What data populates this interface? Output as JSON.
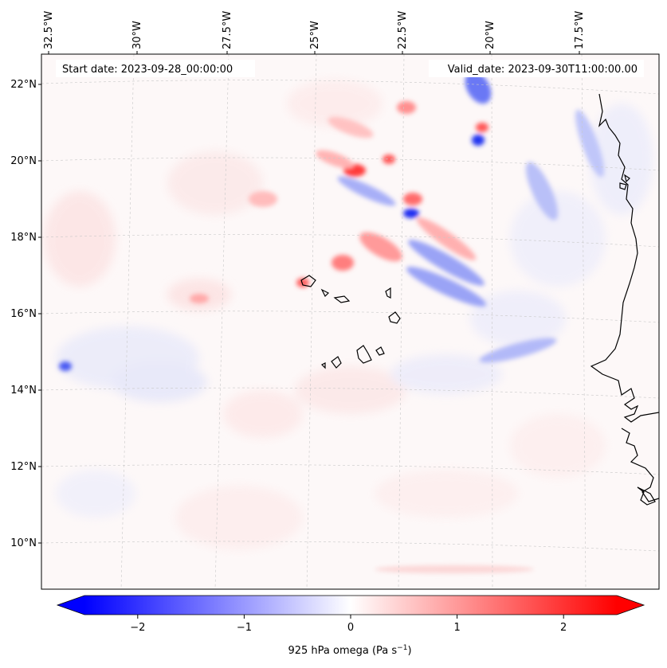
{
  "map": {
    "start_date_text": "Start date: 2023-09-28_00:00:00",
    "valid_date_text": "Valid_date: 2023-09-30T11:00:00.00",
    "lon_ticks": [
      "32.5°W",
      "30°W",
      "27.5°W",
      "25°W",
      "22.5°W",
      "20°W",
      "17.5°W"
    ],
    "lat_ticks": [
      "22°N",
      "20°N",
      "18°N",
      "16°N",
      "14°N",
      "12°N",
      "10°N"
    ],
    "lon_values": [
      -32.5,
      -30,
      -27.5,
      -25,
      -22.5,
      -20,
      -17.5
    ],
    "lat_values": [
      22,
      20,
      18,
      16,
      14,
      12,
      10
    ],
    "variable": "925 hPa omega"
  },
  "colorbar": {
    "label_main": "925 hPa omega (Pa s",
    "label_exp": "−1",
    "label_close": ")",
    "ticks": [
      "−2",
      "−1",
      "0",
      "1",
      "2"
    ],
    "tick_values": [
      -2,
      -1,
      0,
      1,
      2
    ],
    "range": [
      -2.5,
      2.5
    ],
    "color_neg": "#0000ff",
    "color_zero": "#ffffff",
    "color_pos": "#ff0000"
  }
}
